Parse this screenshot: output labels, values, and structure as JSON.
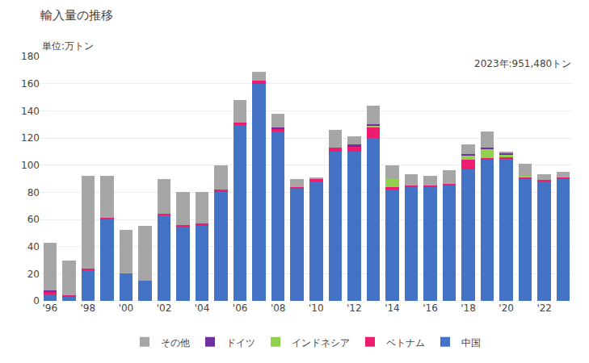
{
  "chart_data": {
    "type": "bar",
    "title": "輸入量の推移",
    "ylabel": "単位:万トン",
    "annotations": [
      "2023年:951,480トン"
    ],
    "stacked": true,
    "grid": true,
    "legend": "bottom",
    "categories": [
      "'96",
      null,
      "'98",
      null,
      "'00",
      null,
      "'02",
      null,
      "'04",
      null,
      "'06",
      null,
      "'08",
      null,
      "'10",
      null,
      "'12",
      null,
      "'14",
      null,
      "'16",
      null,
      "'18",
      null,
      "'20",
      null,
      "'22",
      null
    ],
    "series": [
      {
        "name": "中国",
        "color": "#4472C4",
        "values": [
          5,
          3,
          23,
          60,
          20,
          15,
          63,
          55,
          55,
          80,
          130,
          160,
          125,
          83,
          88,
          110,
          110,
          120,
          82,
          84,
          84,
          85,
          97,
          104,
          105,
          90,
          88,
          90
        ]
      },
      {
        "name": "ベトナム",
        "color": "#ED1C6F",
        "values": [
          2,
          1,
          1,
          1,
          0,
          0,
          1,
          1,
          2,
          2,
          1,
          2,
          2,
          1,
          2,
          3,
          4,
          8,
          2,
          1,
          1,
          1,
          7,
          1,
          1,
          1,
          1,
          1
        ]
      },
      {
        "name": "インドネシア",
        "color": "#92D050",
        "values": [
          0,
          0,
          0,
          0,
          0,
          0,
          0,
          0,
          0,
          0,
          0,
          0,
          0,
          0,
          0,
          0,
          0,
          1,
          6,
          0,
          0,
          0,
          3,
          7,
          2,
          1,
          0,
          0
        ]
      },
      {
        "name": "ドイツ",
        "color": "#7030A0",
        "values": [
          1,
          0,
          0,
          0,
          0,
          0,
          0,
          0,
          0,
          0,
          0,
          0,
          1,
          0,
          0,
          0,
          1,
          1,
          0,
          0,
          0,
          0,
          1,
          1,
          1,
          0,
          0,
          0
        ]
      },
      {
        "name": "その他",
        "color": "#A6A6A6",
        "values": [
          35,
          26,
          68,
          31,
          32,
          40,
          26,
          24,
          23,
          18,
          17,
          7,
          10,
          6,
          1,
          13,
          6,
          14,
          10,
          8,
          7,
          10,
          7,
          12,
          1,
          9,
          4,
          4
        ]
      }
    ],
    "ylim": [
      0,
      180
    ],
    "yticks": [
      0,
      20,
      40,
      60,
      80,
      100,
      120,
      140,
      160,
      180
    ]
  }
}
